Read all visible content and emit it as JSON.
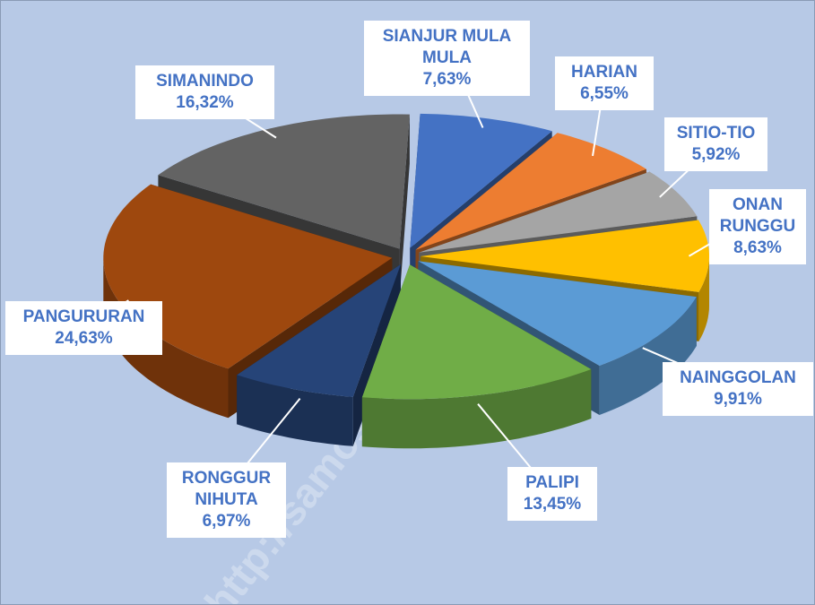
{
  "chart_data": {
    "type": "pie3d",
    "categories": [
      "SIANJUR MULA MULA",
      "HARIAN",
      "SITIO-TIO",
      "ONAN RUNGGU",
      "NAINGGOLAN",
      "PALIPI",
      "RONGGUR NIHUTA",
      "PANGURURAN",
      "SIMANINDO"
    ],
    "values": [
      7.63,
      6.55,
      5.92,
      8.63,
      9.91,
      13.45,
      6.97,
      24.63,
      16.32
    ],
    "value_labels": [
      "7,63%",
      "6,55%",
      "5,92%",
      "8,63%",
      "9,91%",
      "13,45%",
      "6,97%",
      "24,63%",
      "16,32%"
    ],
    "colors": [
      "#4472c4",
      "#ed7d31",
      "#a5a5a5",
      "#ffc000",
      "#5b9bd5",
      "#70ad47",
      "#264478",
      "#9e480e",
      "#636363"
    ],
    "watermark": "http://samosirkab.bps.go.id"
  }
}
